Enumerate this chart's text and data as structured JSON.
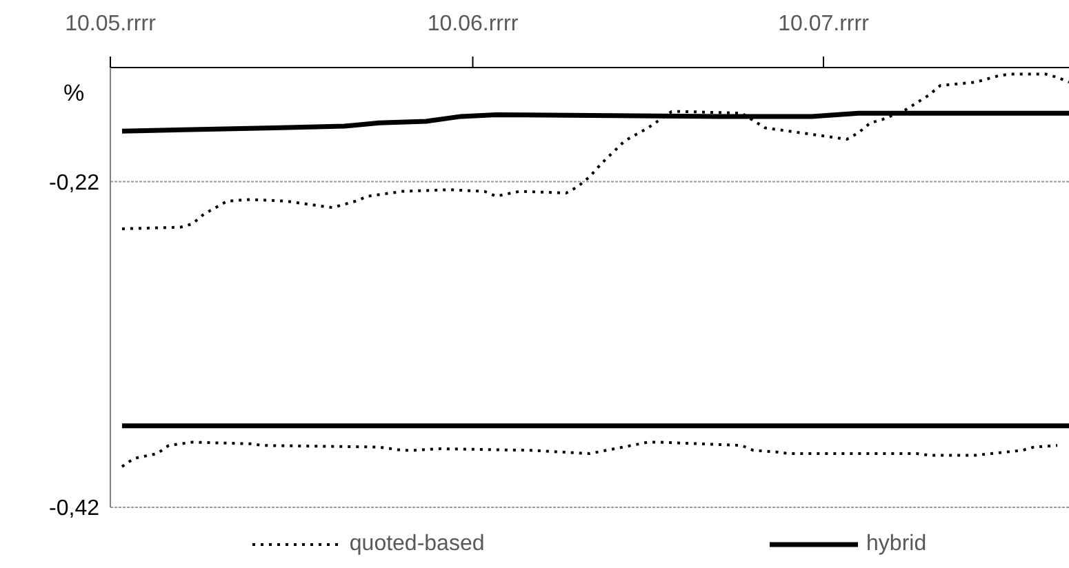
{
  "chart_data": {
    "type": "line",
    "ylabel": "%",
    "xlim": [
      "--05-10",
      "--07-31"
    ],
    "xticks": [
      {
        "value": "--05-10",
        "label": "10.05.rrrr"
      },
      {
        "value": "--06-10",
        "label": "10.06.rrrr"
      },
      {
        "value": "--07-10",
        "label": "10.07.rrrr"
      }
    ],
    "ylim": [
      -0.42,
      -0.15
    ],
    "yticks": [
      {
        "value": -0.22,
        "label": "-0,22"
      },
      {
        "value": -0.42,
        "label": "-0,42"
      }
    ],
    "grid": "y",
    "legend": "bottom",
    "marker": "none",
    "series": [
      {
        "name": "quoted-based",
        "color": "#000000",
        "line_style": "dotted",
        "x": [
          "--05-11",
          "--05-16",
          "--05-17",
          "--05-18",
          "--05-20",
          "--05-22",
          "--05-25",
          "--05-29",
          "--05-31",
          "--06-01",
          "--06-04",
          "--06-08",
          "--06-11",
          "--06-12",
          "--06-14",
          "--06-18",
          "--06-19",
          "--06-20",
          "--06-21",
          "--06-22",
          "--06-23",
          "--06-25",
          "--06-27",
          "--06-28",
          "--07-03",
          "--07-05",
          "--07-08",
          "--07-10",
          "--07-12",
          "--07-13",
          "--07-14",
          "--07-15",
          "--07-17",
          "--07-19",
          "--07-20",
          "--07-23",
          "--07-25",
          "--07-26",
          "--07-29",
          "--07-30",
          "--07-31"
        ],
        "values": [
          -0.249,
          -0.248,
          -0.246,
          -0.24,
          -0.232,
          -0.231,
          -0.232,
          -0.236,
          -0.232,
          -0.229,
          -0.226,
          -0.225,
          -0.226,
          -0.229,
          -0.226,
          -0.227,
          -0.223,
          -0.217,
          -0.209,
          -0.202,
          -0.195,
          -0.187,
          -0.177,
          -0.177,
          -0.178,
          -0.187,
          -0.19,
          -0.192,
          -0.194,
          -0.19,
          -0.184,
          -0.182,
          -0.176,
          -0.167,
          -0.161,
          -0.159,
          -0.155,
          -0.154,
          -0.154,
          -0.156,
          -0.159
        ]
      },
      {
        "name": "hybrid",
        "color": "#000000",
        "line_style": "solid",
        "x": [
          "--05-11",
          "--05-24",
          "--05-30",
          "--06-02",
          "--06-06",
          "--06-09",
          "--06-12",
          "--07-01",
          "--07-09",
          "--07-13",
          "--07-31"
        ],
        "values": [
          -0.189,
          -0.187,
          -0.186,
          -0.184,
          -0.183,
          -0.18,
          -0.179,
          -0.18,
          -0.18,
          -0.178,
          -0.178
        ]
      },
      {
        "color": "#000000",
        "line_style": "solid",
        "x": [
          "--05-11",
          "--07-31"
        ],
        "values": [
          -0.37,
          -0.37
        ]
      },
      {
        "color": "#000000",
        "line_style": "dotted",
        "x": [
          "--05-11",
          "--05-12",
          "--05-14",
          "--05-15",
          "--05-17",
          "--05-22",
          "--05-23",
          "--06-02",
          "--06-04",
          "--06-05",
          "--06-07",
          "--06-15",
          "--06-20",
          "--06-25",
          "--06-26",
          "--07-03",
          "--07-04",
          "--07-06",
          "--07-07",
          "--07-18",
          "--07-19",
          "--07-23",
          "--07-27",
          "--07-28",
          "--07-30"
        ],
        "values": [
          -0.395,
          -0.39,
          -0.387,
          -0.382,
          -0.38,
          -0.381,
          -0.382,
          -0.383,
          -0.385,
          -0.385,
          -0.384,
          -0.385,
          -0.387,
          -0.38,
          -0.38,
          -0.382,
          -0.385,
          -0.386,
          -0.387,
          -0.387,
          -0.388,
          -0.388,
          -0.385,
          -0.383,
          -0.382
        ]
      }
    ]
  }
}
